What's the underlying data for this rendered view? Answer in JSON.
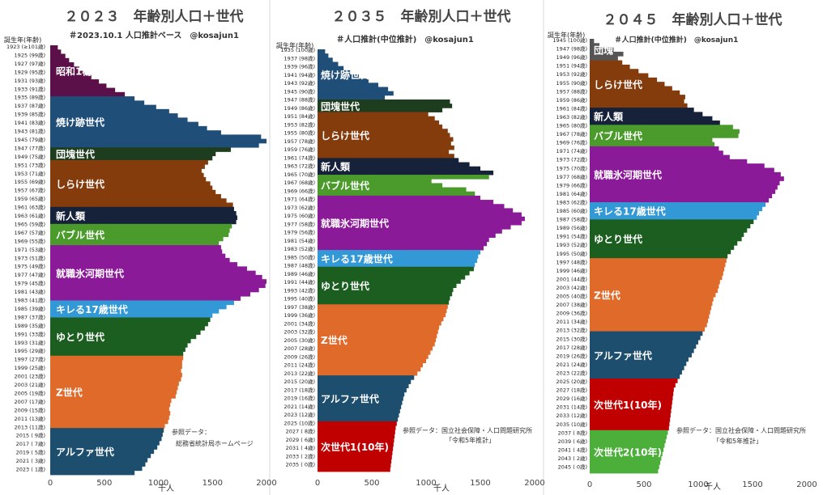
{
  "colors": {
    "昭和1桁": "#5c1049",
    "焼け跡世代": "#1f4e79",
    "団塊世代": "#1e3d1e",
    "しらけ世代": "#843c0c",
    "新人類": "#16213a",
    "バブル世代": "#4a9b2b",
    "就職氷河期世代": "#8b1a98",
    "キレる17歳世代": "#3399d6",
    "ゆとり世代": "#1b5e20",
    "Z世代": "#e06a2a",
    "アルファ世代": "#1d4e6e",
    "次世代1(10年)": "#c00000",
    "次世代2(10年)": "#4caf3a"
  },
  "chart_data": [
    {
      "type": "bar",
      "orientation": "horizontal",
      "title": "２０２３　年齢別人口＋世代",
      "subtitle": "＃2023.10.1 人口推計ベース　@kosajun1",
      "y_header": "誕生年(年齢)",
      "xlabel": "千人",
      "xlim": [
        0,
        2000
      ],
      "xticks": [
        0,
        500,
        1000,
        1500,
        2000
      ],
      "y_tick_labels": [
        "1923 (≥101歳)",
        "1925 (99歳)",
        "1927 (97歳)",
        "1929 (95歳)",
        "1931 (93歳)",
        "1933 (91歳)",
        "1935 (89歳)",
        "1937 (87歳)",
        "1939 (85歳)",
        "1941 (83歳)",
        "1943 (81歳)",
        "1945 (79歳)",
        "1947 (77歳)",
        "1949 (75歳)",
        "1951 (73歳)",
        "1953 (71歳)",
        "1955 (69歳)",
        "1957 (67歳)",
        "1959 (65歳)",
        "1961 (63歳)",
        "1963 (61歳)",
        "1965 (59歳)",
        "1967 (57歳)",
        "1969 (55歳)",
        "1971 (53歳)",
        "1973 (51歳)",
        "1975 (49歳)",
        "1977 (47歳)",
        "1979 (45歳)",
        "1981 (43歳)",
        "1983 (41歳)",
        "1985 (39歳)",
        "1987 (37歳)",
        "1989 (35歳)",
        "1991 (33歳)",
        "1993 (31歳)",
        "1995 (29歳)",
        "1997 (27歳)",
        "1999 (25歳)",
        "2001 (23歳)",
        "2003 (21歳)",
        "2005 (19歳)",
        "2007 (17歳)",
        "2009 (15歳)",
        "2011 (13歳)",
        "2013 (11歳)",
        "2015 ( 9歳)",
        "2017 ( 7歳)",
        "2019 ( 5歳)",
        "2021 ( 3歳)",
        "2023 ( 1歳)"
      ],
      "start_year": 1923,
      "values": [
        70,
        100,
        140,
        175,
        220,
        270,
        320,
        380,
        450,
        520,
        600,
        690,
        780,
        870,
        980,
        1100,
        1180,
        1270,
        1370,
        1450,
        1580,
        1950,
        2010,
        1930,
        1670,
        1530,
        1500,
        1460,
        1430,
        1400,
        1420,
        1440,
        1480,
        1500,
        1530,
        1580,
        1630,
        1690,
        1700,
        1720,
        1730,
        1720,
        1680,
        1660,
        1650,
        1600,
        1560,
        1580,
        1590,
        1620,
        1660,
        1730,
        1820,
        1900,
        1960,
        2000,
        1990,
        1930,
        1850,
        1760,
        1700,
        1630,
        1560,
        1500,
        1480,
        1460,
        1430,
        1390,
        1350,
        1300,
        1270,
        1250,
        1230,
        1230,
        1220,
        1220,
        1210,
        1220,
        1210,
        1190,
        1180,
        1170,
        1160,
        1120,
        1110,
        1100,
        1110,
        1100,
        1090,
        1060,
        1050,
        1040,
        1030,
        1010,
        990,
        960,
        930,
        900,
        880,
        850,
        780
      ],
      "generations": [
        {
          "label": "昭和1桁",
          "start": 1923,
          "end": 1934
        },
        {
          "label": "焼け跡世代",
          "start": 1935,
          "end": 1946
        },
        {
          "label": "団塊世代",
          "start": 1947,
          "end": 1949
        },
        {
          "label": "しらけ世代",
          "start": 1950,
          "end": 1960
        },
        {
          "label": "新人類",
          "start": 1961,
          "end": 1964
        },
        {
          "label": "バブル世代",
          "start": 1965,
          "end": 1969
        },
        {
          "label": "就職氷河期世代",
          "start": 1970,
          "end": 1982
        },
        {
          "label": "キレる17歳世代",
          "start": 1983,
          "end": 1986
        },
        {
          "label": "ゆとり世代",
          "start": 1987,
          "end": 1995
        },
        {
          "label": "Z世代",
          "start": 1996,
          "end": 2012
        },
        {
          "label": "アルファ世代",
          "start": 2013,
          "end": 2023
        }
      ],
      "note": [
        "参照データ：",
        "総務省統計局ホームページ"
      ]
    },
    {
      "type": "bar",
      "orientation": "horizontal",
      "title": "２０３５　年齢別人口＋世代",
      "subtitle": "＃人口推計(中位推計)　@kosajun1",
      "y_header": "誕生年(年齢)",
      "xlabel": "千人",
      "xlim": [
        0,
        2000
      ],
      "xticks": [
        0,
        500,
        1000,
        1500,
        2000
      ],
      "y_tick_labels": [
        "1935 (100歳)",
        "1937 (98歳)",
        "1939 (96歳)",
        "1941 (94歳)",
        "1943 (92歳)",
        "1945 (90歳)",
        "1947 (88歳)",
        "1949 (86歳)",
        "1951 (84歳)",
        "1953 (82歳)",
        "1955 (80歳)",
        "1957 (78歳)",
        "1959 (76歳)",
        "1961 (74歳)",
        "1963 (72歳)",
        "1965 (70歳)",
        "1967 (68歳)",
        "1969 (66歳)",
        "1971 (64歳)",
        "1973 (62歳)",
        "1975 (60歳)",
        "1977 (58歳)",
        "1979 (56歳)",
        "1981 (54歳)",
        "1983 (52歳)",
        "1985 (50歳)",
        "1987 (48歳)",
        "1989 (46歳)",
        "1991 (44歳)",
        "1993 (42歳)",
        "1995 (40歳)",
        "1997 (38歳)",
        "1999 (36歳)",
        "2001 (34歳)",
        "2003 (32歳)",
        "2005 (30歳)",
        "2007 (28歳)",
        "2009 (26歳)",
        "2011 (24歳)",
        "2013 (22歳)",
        "2015 (20歳)",
        "2017 (18歳)",
        "2019 (16歳)",
        "2021 (14歳)",
        "2023 (12歳)",
        "2025 (10歳)",
        "2027 ( 8歳)",
        "2029 ( 6歳)",
        "2031 ( 4歳)",
        "2033 ( 2歳)",
        "2035 ( 0歳)"
      ],
      "start_year": 1935,
      "values": [
        70,
        100,
        140,
        190,
        240,
        300,
        380,
        470,
        560,
        650,
        700,
        620,
        1220,
        1240,
        1150,
        1020,
        1080,
        1120,
        1150,
        1200,
        1220,
        1250,
        1230,
        1260,
        1210,
        1260,
        1300,
        1400,
        1500,
        1620,
        1580,
        1050,
        1150,
        1370,
        1450,
        1500,
        1620,
        1720,
        1800,
        1880,
        1910,
        1880,
        1780,
        1700,
        1640,
        1580,
        1560,
        1530,
        1500,
        1480,
        1470,
        1450,
        1440,
        1400,
        1360,
        1320,
        1280,
        1250,
        1240,
        1220,
        1210,
        1200,
        1190,
        1180,
        1160,
        1140,
        1120,
        1110,
        1100,
        1090,
        1080,
        1060,
        1040,
        1020,
        1000,
        970,
        950,
        920,
        890,
        860,
        840,
        820,
        800,
        790,
        780,
        770,
        760,
        750,
        740,
        730,
        720,
        715,
        710,
        705,
        700,
        695,
        690,
        685,
        680,
        675,
        670
      ],
      "generations": [
        {
          "label": "焼け跡世代",
          "start": 1935,
          "end": 1946
        },
        {
          "label": "団塊世代",
          "start": 1947,
          "end": 1949
        },
        {
          "label": "しらけ世代",
          "start": 1950,
          "end": 1960
        },
        {
          "label": "新人類",
          "start": 1961,
          "end": 1964
        },
        {
          "label": "バブル世代",
          "start": 1965,
          "end": 1969
        },
        {
          "label": "就職氷河期世代",
          "start": 1970,
          "end": 1982
        },
        {
          "label": "キレる17歳世代",
          "start": 1983,
          "end": 1986
        },
        {
          "label": "ゆとり世代",
          "start": 1987,
          "end": 1995
        },
        {
          "label": "Z世代",
          "start": 1996,
          "end": 2012
        },
        {
          "label": "アルファ世代",
          "start": 2013,
          "end": 2023
        },
        {
          "label": "次世代1(10年)",
          "start": 2024,
          "end": 2035
        }
      ],
      "note": [
        "参照データ：国立社会保障・人口問題研究所",
        "「令和5年推計」"
      ]
    },
    {
      "type": "bar",
      "orientation": "horizontal",
      "title": "２０４５　年齢別人口＋世代",
      "subtitle": "＃人口推計(中位推計)　@kosajun1",
      "y_header": "誕生年(年齢)",
      "xlabel": "千人",
      "xlim": [
        0,
        2000
      ],
      "xticks": [
        0,
        500,
        1000,
        1500,
        2000
      ],
      "y_tick_labels": [
        "1945 (100歳)",
        "1947 (98歳)",
        "1949 (96歳)",
        "1951 (94歳)",
        "1953 (92歳)",
        "1955 (90歳)",
        "1957 (88歳)",
        "1959 (86歳)",
        "1961 (84歳)",
        "1963 (82歳)",
        "1965 (80歳)",
        "1967 (78歳)",
        "1969 (76歳)",
        "1971 (74歳)",
        "1973 (72歳)",
        "1975 (70歳)",
        "1977 (68歳)",
        "1979 (66歳)",
        "1981 (64歳)",
        "1983 (62歳)",
        "1985 (60歳)",
        "1987 (58歳)",
        "1989 (56歳)",
        "1991 (54歳)",
        "1993 (52歳)",
        "1995 (50歳)",
        "1997 (48歳)",
        "1999 (46歳)",
        "2001 (44歳)",
        "2003 (42歳)",
        "2005 (40歳)",
        "2007 (38歳)",
        "2009 (36歳)",
        "2011 (34歳)",
        "2013 (32歳)",
        "2015 (30歳)",
        "2017 (28歳)",
        "2019 (26歳)",
        "2021 (24歳)",
        "2023 (22歳)",
        "2025 (20歳)",
        "2027 (18歳)",
        "2029 (16歳)",
        "2031 (14歳)",
        "2033 (12歳)",
        "2035 (10歳)",
        "2037 ( 8歳)",
        "2039 ( 6歳)",
        "2041 ( 4歳)",
        "2043 ( 2歳)",
        "2045 ( 0歳)"
      ],
      "start_year": 1945,
      "values": [
        40,
        90,
        220,
        310,
        260,
        300,
        370,
        450,
        540,
        620,
        690,
        760,
        830,
        880,
        870,
        900,
        960,
        1040,
        1130,
        1200,
        1320,
        1380,
        1370,
        1130,
        1150,
        1190,
        1230,
        1290,
        1450,
        1610,
        1700,
        1760,
        1790,
        1750,
        1730,
        1710,
        1680,
        1650,
        1620,
        1590,
        1560,
        1540,
        1510,
        1480,
        1450,
        1420,
        1400,
        1360,
        1330,
        1300,
        1270,
        1260,
        1250,
        1240,
        1230,
        1220,
        1200,
        1190,
        1180,
        1160,
        1140,
        1130,
        1120,
        1110,
        1100,
        1090,
        1080,
        1060,
        1040,
        1020,
        1000,
        980,
        960,
        940,
        910,
        890,
        870,
        850,
        830,
        810,
        790,
        775,
        770,
        765,
        760,
        755,
        750,
        745,
        740,
        735,
        730,
        720,
        710,
        700,
        690,
        680,
        670,
        660,
        650,
        640,
        630
      ],
      "generations": [
        {
          "label": "団塊",
          "start": 1945,
          "end": 1949
        },
        {
          "label": "しらけ世代",
          "start": 1950,
          "end": 1960
        },
        {
          "label": "新人類",
          "start": 1961,
          "end": 1964
        },
        {
          "label": "バブル世代",
          "start": 1965,
          "end": 1969
        },
        {
          "label": "就職氷河期世代",
          "start": 1970,
          "end": 1982
        },
        {
          "label": "キレる17歳世代",
          "start": 1983,
          "end": 1986
        },
        {
          "label": "ゆとり世代",
          "start": 1987,
          "end": 1995
        },
        {
          "label": "Z世代",
          "start": 1996,
          "end": 2012
        },
        {
          "label": "アルファ世代",
          "start": 2013,
          "end": 2023
        },
        {
          "label": "次世代1(10年)",
          "start": 2024,
          "end": 2035
        },
        {
          "label": "次世代2(10年)",
          "start": 2036,
          "end": 2045
        }
      ],
      "note": [
        "参照データ：国立社会保障・人口問題研究所",
        "「令和5年推計」"
      ]
    }
  ]
}
